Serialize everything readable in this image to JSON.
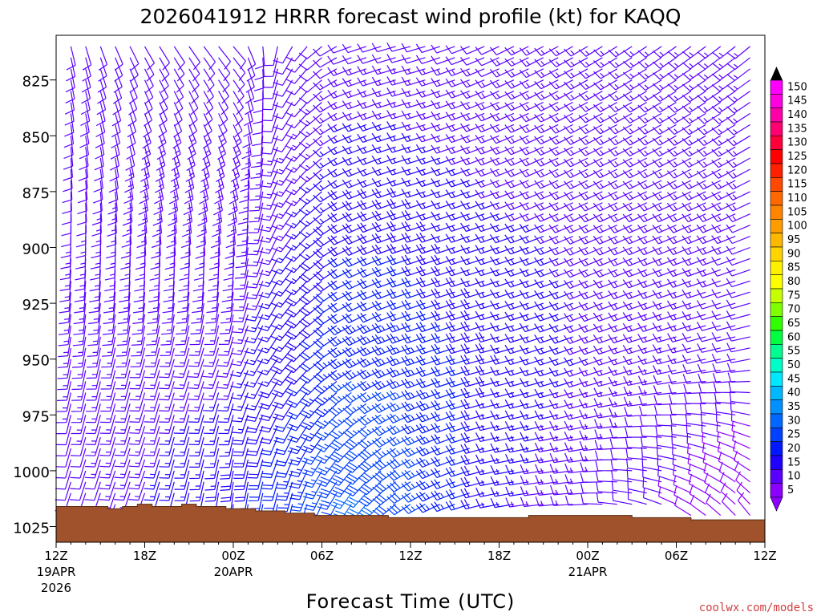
{
  "chart_data": {
    "type": "wind-barb-time-height",
    "title": "2026041912 HRRR forecast wind profile (kt) for KAQQ",
    "xlabel": "Forecast Time (UTC)",
    "credit": "coolwx.com/models",
    "y_ticks": [
      "825",
      "850",
      "875",
      "900",
      "925",
      "950",
      "975",
      "1000",
      "1025"
    ],
    "y_tick_values": [
      825,
      850,
      875,
      900,
      925,
      950,
      975,
      1000,
      1025
    ],
    "x_ticks": [
      {
        "hour": 0,
        "label": "12Z",
        "date": "19APR",
        "year": "2026"
      },
      {
        "hour": 6,
        "label": "18Z",
        "date": "",
        "year": ""
      },
      {
        "hour": 12,
        "label": "00Z",
        "date": "20APR",
        "year": ""
      },
      {
        "hour": 18,
        "label": "06Z",
        "date": "",
        "year": ""
      },
      {
        "hour": 24,
        "label": "12Z",
        "date": "",
        "year": ""
      },
      {
        "hour": 30,
        "label": "18Z",
        "date": "",
        "year": ""
      },
      {
        "hour": 36,
        "label": "00Z",
        "date": "21APR",
        "year": ""
      },
      {
        "hour": 42,
        "label": "06Z",
        "date": "",
        "year": ""
      },
      {
        "hour": 48,
        "label": "12Z",
        "date": "",
        "year": ""
      }
    ],
    "x_range_hours": [
      0,
      48
    ],
    "pressure_range": [
      805,
      1032
    ],
    "legend": {
      "labels": [
        "150",
        "145",
        "140",
        "135",
        "130",
        "125",
        "120",
        "115",
        "110",
        "105",
        "100",
        "95",
        "90",
        "85",
        "80",
        "75",
        "70",
        "65",
        "60",
        "55",
        "50",
        "45",
        "40",
        "35",
        "30",
        "25",
        "20",
        "15",
        "10",
        "5"
      ],
      "colors": [
        "#ff00ff",
        "#ff00e0",
        "#ff00a8",
        "#ff0070",
        "#ff0038",
        "#ff0000",
        "#ff2000",
        "#ff4800",
        "#ff6800",
        "#ff8400",
        "#ff9c00",
        "#ffb800",
        "#ffd400",
        "#fff000",
        "#ffff00",
        "#c8ff00",
        "#80ff00",
        "#30ff00",
        "#00ff40",
        "#00ff90",
        "#00ffc8",
        "#00e8ff",
        "#00b8ff",
        "#0090ff",
        "#0068ff",
        "#0040ff",
        "#0018ff",
        "#2000ff",
        "#5a00ff",
        "#8c00ff"
      ]
    },
    "surface_pressure": [
      {
        "hour": 0,
        "p": 1016
      },
      {
        "hour": 2,
        "p": 1016
      },
      {
        "hour": 3.5,
        "p": 1017
      },
      {
        "hour": 4.5,
        "p": 1016
      },
      {
        "hour": 5.5,
        "p": 1015
      },
      {
        "hour": 6.5,
        "p": 1016
      },
      {
        "hour": 8.5,
        "p": 1015
      },
      {
        "hour": 9.5,
        "p": 1016
      },
      {
        "hour": 11.5,
        "p": 1017
      },
      {
        "hour": 13.5,
        "p": 1018
      },
      {
        "hour": 15.5,
        "p": 1019
      },
      {
        "hour": 17.5,
        "p": 1020
      },
      {
        "hour": 22.5,
        "p": 1021
      },
      {
        "hour": 30,
        "p": 1021
      },
      {
        "hour": 32,
        "p": 1020
      },
      {
        "hour": 36,
        "p": 1020
      },
      {
        "hour": 39,
        "p": 1021
      },
      {
        "hour": 43,
        "p": 1022
      },
      {
        "hour": 47,
        "p": 1022
      },
      {
        "hour": 48,
        "p": 1023
      }
    ],
    "barb_levels": [
      810,
      815,
      820,
      825,
      830,
      835,
      840,
      845,
      850,
      855,
      860,
      865,
      870,
      875,
      880,
      885,
      890,
      895,
      900,
      905,
      910,
      915,
      920,
      925,
      930,
      935,
      940,
      945,
      950,
      955,
      960,
      965,
      970,
      975,
      980,
      985,
      990,
      995,
      1000,
      1005,
      1010,
      1015,
      1020,
      1025
    ],
    "wind_profile": [
      {
        "hour": 0,
        "low_kt": 8,
        "low_dir": 200,
        "mid_kt": 14,
        "mid_dir": 190,
        "high_kt": 10,
        "high_dir": 170
      },
      {
        "hour": 6,
        "low_kt": 15,
        "low_dir": 200,
        "mid_kt": 14,
        "mid_dir": 195,
        "high_kt": 12,
        "high_dir": 150
      },
      {
        "hour": 12,
        "low_kt": 20,
        "low_dir": 185,
        "mid_kt": 14,
        "mid_dir": 200,
        "high_kt": 12,
        "high_dir": 140
      },
      {
        "hour": 16,
        "low_kt": 25,
        "low_dir": 190,
        "mid_kt": 18,
        "mid_dir": 220,
        "high_kt": 10,
        "high_dir": 210
      },
      {
        "hour": 20,
        "low_kt": 32,
        "low_dir": 210,
        "mid_kt": 24,
        "mid_dir": 240,
        "high_kt": 12,
        "high_dir": 250
      },
      {
        "hour": 24,
        "low_kt": 30,
        "low_dir": 235,
        "mid_kt": 24,
        "mid_dir": 250,
        "high_kt": 12,
        "high_dir": 255
      },
      {
        "hour": 30,
        "low_kt": 16,
        "low_dir": 260,
        "mid_kt": 18,
        "mid_dir": 255,
        "high_kt": 12,
        "high_dir": 245
      },
      {
        "hour": 36,
        "low_kt": 12,
        "low_dir": 270,
        "mid_kt": 15,
        "mid_dir": 250,
        "high_kt": 14,
        "high_dir": 240
      },
      {
        "hour": 42,
        "low_kt": 9,
        "low_dir": 300,
        "mid_kt": 13,
        "mid_dir": 255,
        "high_kt": 14,
        "high_dir": 235
      },
      {
        "hour": 48,
        "low_kt": 7,
        "low_dir": 330,
        "mid_kt": 11,
        "mid_dir": 260,
        "high_kt": 14,
        "high_dir": 230
      }
    ],
    "grid": false
  }
}
